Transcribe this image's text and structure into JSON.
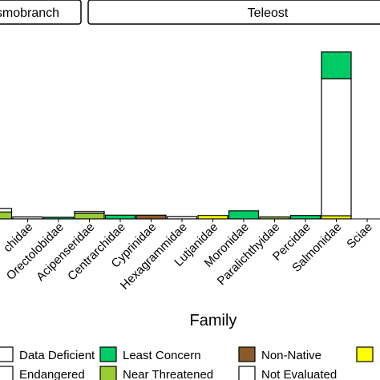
{
  "chart_data": {
    "type": "bar",
    "stacked": true,
    "title": "",
    "xlabel": "Family",
    "ylabel": "",
    "ylim": [
      0,
      30
    ],
    "grid": false,
    "legend_position": "bottom",
    "facets": [
      {
        "label": "asmobranch",
        "categories": [
          "chidae",
          "Orectolobidae"
        ]
      },
      {
        "label": "Teleost",
        "categories": [
          "Acipenseridae",
          "Centrarchidae",
          "Cyprinidae",
          "Hexagrammidae",
          "Lutjanidae",
          "Moronidae",
          "Paralichthyidae",
          "Percidae",
          "Salmonidae",
          "Sciae"
        ]
      }
    ],
    "categories": [
      "",
      "chidae",
      "Orectolobidae",
      "Acipenseridae",
      "Centrarchidae",
      "Cyprinidae",
      "Hexagrammidae",
      "Lutjanidae",
      "Moronidae",
      "Paralichthyidae",
      "Percidae",
      "Salmonidae",
      "Sciae"
    ],
    "series": [
      {
        "name": "Data Deficient",
        "color": "#ffffff",
        "values": [
          0,
          0,
          0,
          0,
          0,
          0,
          0,
          0,
          0,
          0,
          0,
          0,
          0
        ]
      },
      {
        "name": "Endangered",
        "color": "#ffffff",
        "values": [
          0,
          0,
          0,
          0,
          0,
          0,
          0,
          0,
          0,
          0,
          0,
          0,
          0
        ]
      },
      {
        "name": "Least Concern",
        "color": "#00cc66",
        "values": [
          0,
          0,
          0.25,
          0,
          0.6,
          0,
          0,
          0,
          1.3,
          0,
          0.55,
          4.3,
          0
        ]
      },
      {
        "name": "Near Threatened",
        "color": "#99cc33",
        "values": [
          1.1,
          0,
          0,
          0.9,
          0,
          0,
          0,
          0,
          0,
          0.3,
          0,
          0,
          0
        ]
      },
      {
        "name": "Non-Native",
        "color": "#8b5a2b",
        "values": [
          0,
          0,
          0,
          0,
          0,
          0.6,
          0,
          0,
          0,
          0,
          0,
          0,
          0
        ]
      },
      {
        "name": "Not Evaluated",
        "color": "#ffffff",
        "values": [
          0.55,
          0.3,
          0,
          0.3,
          0,
          0,
          0.35,
          0,
          0,
          0,
          0,
          22,
          0
        ]
      },
      {
        "name": "",
        "color": "#ffff00",
        "values": [
          0,
          0,
          0,
          0,
          0,
          0,
          0,
          0.55,
          0,
          0,
          0,
          0.5,
          0
        ]
      }
    ],
    "legend": [
      {
        "label": "Data Deficient",
        "color": "#ffffff"
      },
      {
        "label": "Least Concern",
        "color": "#00cc66"
      },
      {
        "label": "Non-Native",
        "color": "#8b5a2b"
      },
      {
        "label": "",
        "color": "#ffff00"
      },
      {
        "label": "Endangered",
        "color": "#ffffff"
      },
      {
        "label": "Near Threatened",
        "color": "#99cc33"
      },
      {
        "label": "Not Evaluated",
        "color": "#ffffff"
      }
    ]
  }
}
